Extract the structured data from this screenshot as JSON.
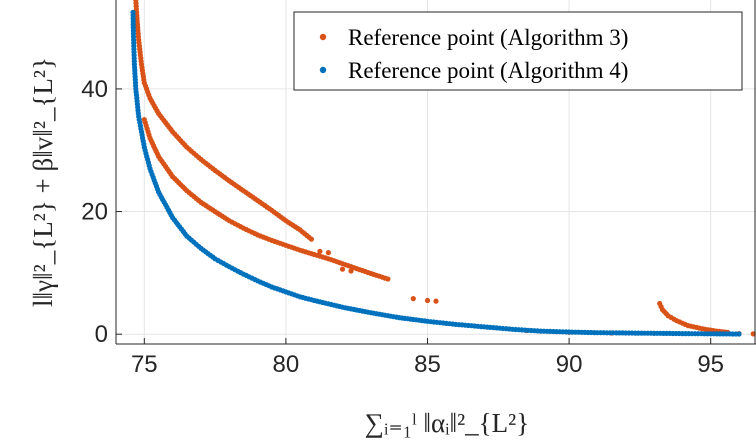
{
  "chart_data": {
    "type": "scatter",
    "xlabel": "∑ᵢ₌₁ˡ ‖αᵢ‖²_{L²}",
    "ylabel": "l‖γ‖²_{L²} + β‖v‖²_{L²}",
    "xlim": [
      74,
      96.6
    ],
    "ylim": [
      -1.6,
      54.5
    ],
    "xticks": [
      75,
      80,
      85,
      90,
      95
    ],
    "yticks": [
      0,
      20,
      40
    ],
    "grid": true,
    "legend_position": "top-right",
    "series": [
      {
        "name": "Reference point (Algorithm 3)",
        "color": "#D95319",
        "segments": [
          [
            [
              74.7,
              54.5
            ],
            [
              74.75,
              51
            ],
            [
              74.8,
              48
            ],
            [
              74.9,
              44
            ],
            [
              75.0,
              41
            ],
            [
              75.2,
              38.5
            ],
            [
              75.5,
              36
            ],
            [
              76,
              33
            ],
            [
              76.5,
              30.5
            ],
            [
              77,
              28.5
            ],
            [
              77.5,
              26.7
            ],
            [
              78,
              25
            ],
            [
              78.5,
              23.4
            ],
            [
              79,
              21.8
            ],
            [
              79.5,
              20.2
            ],
            [
              80,
              18.5
            ],
            [
              80.5,
              17
            ],
            [
              80.9,
              15.5
            ]
          ],
          [
            [
              75.0,
              35
            ],
            [
              75.2,
              32
            ],
            [
              75.5,
              29
            ],
            [
              76,
              25.7
            ],
            [
              76.5,
              23.4
            ],
            [
              77,
              21.5
            ],
            [
              77.5,
              20
            ],
            [
              78,
              18.5
            ],
            [
              78.5,
              17.3
            ],
            [
              79,
              16.2
            ],
            [
              79.5,
              15.3
            ],
            [
              80,
              14.5
            ],
            [
              80.5,
              13.7
            ],
            [
              81,
              13
            ],
            [
              81.5,
              12.3
            ],
            [
              82,
              11.5
            ],
            [
              82.5,
              10.7
            ],
            [
              83,
              9.9
            ],
            [
              83.6,
              9.0
            ]
          ],
          [
            [
              93.2,
              5.0
            ],
            [
              93.3,
              4.0
            ],
            [
              93.5,
              3.0
            ],
            [
              93.8,
              2.2
            ],
            [
              94.2,
              1.4
            ],
            [
              94.7,
              0.9
            ],
            [
              95.2,
              0.5
            ],
            [
              95.6,
              0.3
            ]
          ]
        ],
        "scattered": [
          [
            81.2,
            13.5
          ],
          [
            81.5,
            13.3
          ],
          [
            82.0,
            10.6
          ],
          [
            82.3,
            10.3
          ],
          [
            84.5,
            5.8
          ],
          [
            85.0,
            5.5
          ],
          [
            85.3,
            5.4
          ],
          [
            88.5,
            0.6
          ],
          [
            90.0,
            0.3
          ],
          [
            91.5,
            0.2
          ],
          [
            93.0,
            0.15
          ],
          [
            96.0,
            0.1
          ],
          [
            96.5,
            0.05
          ]
        ]
      },
      {
        "name": "Reference point (Algorithm 4)",
        "color": "#0072BD",
        "segments": [
          [
            [
              74.6,
              52.5
            ],
            [
              74.62,
              48
            ],
            [
              74.65,
              44
            ],
            [
              74.7,
              40
            ],
            [
              74.8,
              35.5
            ],
            [
              75.0,
              30.5
            ],
            [
              75.2,
              27
            ],
            [
              75.5,
              23.2
            ],
            [
              76,
              19
            ],
            [
              76.5,
              16
            ],
            [
              77,
              14
            ],
            [
              77.5,
              12.3
            ],
            [
              78,
              11
            ],
            [
              78.5,
              9.8
            ],
            [
              79,
              8.7
            ],
            [
              79.5,
              7.7
            ],
            [
              80,
              6.9
            ],
            [
              80.5,
              6.1
            ],
            [
              81,
              5.5
            ],
            [
              82,
              4.4
            ],
            [
              83,
              3.5
            ],
            [
              84,
              2.7
            ],
            [
              85,
              2.1
            ],
            [
              86,
              1.6
            ],
            [
              87,
              1.2
            ],
            [
              88,
              0.8
            ],
            [
              89,
              0.5
            ],
            [
              90,
              0.35
            ],
            [
              91,
              0.25
            ],
            [
              92,
              0.2
            ],
            [
              93,
              0.15
            ],
            [
              94,
              0.1
            ],
            [
              95,
              0.06
            ],
            [
              96,
              0.03
            ]
          ]
        ]
      }
    ]
  }
}
